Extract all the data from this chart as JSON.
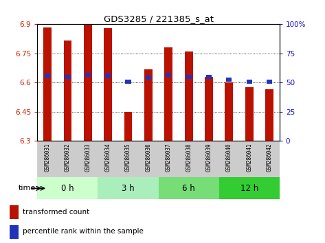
{
  "title": "GDS3285 / 221385_s_at",
  "samples": [
    "GSM286031",
    "GSM286032",
    "GSM286033",
    "GSM286034",
    "GSM286035",
    "GSM286036",
    "GSM286037",
    "GSM286038",
    "GSM286039",
    "GSM286040",
    "GSM286041",
    "GSM286042"
  ],
  "red_values": [
    6.885,
    6.815,
    6.9,
    6.88,
    6.45,
    6.67,
    6.78,
    6.76,
    6.63,
    6.6,
    6.575,
    6.565
  ],
  "blue_values": [
    6.635,
    6.63,
    6.64,
    6.635,
    6.605,
    6.625,
    6.64,
    6.63,
    6.63,
    6.615,
    6.605,
    6.605
  ],
  "y_min": 6.3,
  "y_max": 6.9,
  "y_ticks": [
    6.3,
    6.45,
    6.6,
    6.75,
    6.9
  ],
  "y_tick_labels": [
    "6.3",
    "6.45",
    "6.6",
    "6.75",
    "6.9"
  ],
  "y2_ticks": [
    0,
    25,
    50,
    75,
    100
  ],
  "y2_tick_labels": [
    "0",
    "25",
    "50",
    "75",
    "100%"
  ],
  "groups": [
    {
      "label": "0 h",
      "start": 0,
      "end": 3
    },
    {
      "label": "3 h",
      "start": 3,
      "end": 6
    },
    {
      "label": "6 h",
      "start": 6,
      "end": 9
    },
    {
      "label": "12 h",
      "start": 9,
      "end": 12
    }
  ],
  "group_colors": [
    "#ccffcc",
    "#aaeebb",
    "#77dd77",
    "#33cc33"
  ],
  "bar_color": "#bb1100",
  "blue_color": "#2233bb",
  "bg_color": "#ffffff",
  "sample_bg": "#cccccc",
  "left_label_color": "#cc2200",
  "right_label_color": "#1111cc"
}
